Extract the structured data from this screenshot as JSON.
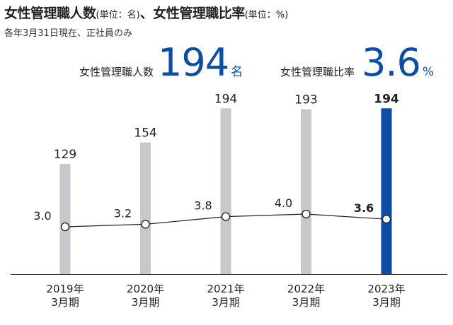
{
  "header": {
    "title": "女性管理職人数",
    "title_unit": "(単位：名)",
    "title_sep": "、",
    "title2": "女性管理職比率",
    "title2_unit": "(単位：%)",
    "subtitle": "各年3月31日現在、正社員のみ"
  },
  "kpi": {
    "count_label": "女性管理職人数",
    "count_value": "194",
    "count_unit": "名",
    "ratio_label": "女性管理職比率",
    "ratio_value": "3.6",
    "ratio_unit": "%"
  },
  "chart_data": {
    "type": "bar",
    "categories": [
      [
        "2019年",
        "3月期"
      ],
      [
        "2020年",
        "3月期"
      ],
      [
        "2021年",
        "3月期"
      ],
      [
        "2022年",
        "3月期"
      ],
      [
        "2023年",
        "3月期"
      ]
    ],
    "series": [
      {
        "name": "女性管理職人数",
        "values": [
          129,
          154,
          194,
          193,
          194
        ],
        "value_labels": [
          "129",
          "154",
          "194",
          "193",
          "194"
        ]
      },
      {
        "name": "女性管理職比率",
        "type": "line",
        "values": [
          3.0,
          3.2,
          3.8,
          4.0,
          3.6
        ],
        "value_labels": [
          "3.0",
          "3.2",
          "3.8",
          "4.0",
          "3.6"
        ]
      }
    ],
    "ylim": [
      0,
      230
    ],
    "highlight_index": 4,
    "colors": {
      "bar": "#c8c8cc",
      "bar_highlight": "#0a4ea8",
      "line": "#222222",
      "marker_fill": "#ffffff"
    }
  }
}
